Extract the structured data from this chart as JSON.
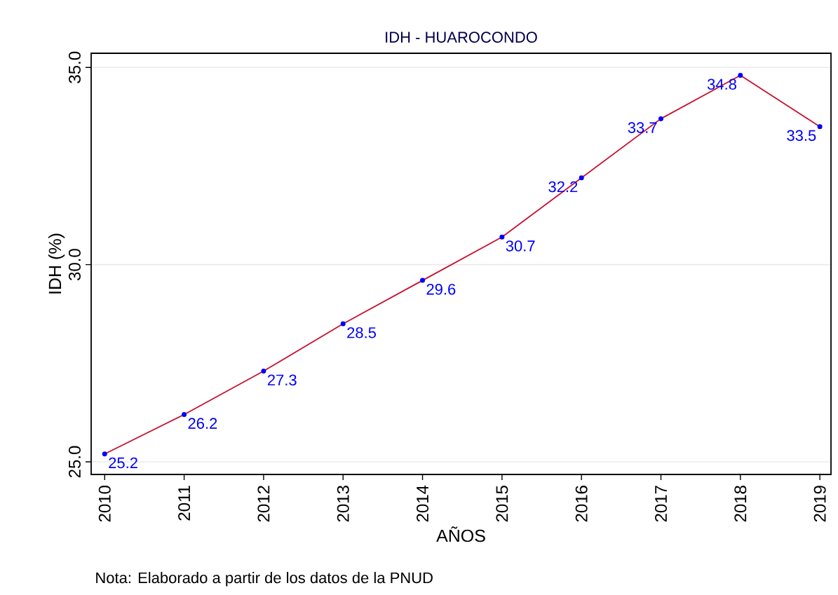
{
  "chart_data": {
    "type": "line",
    "title": "IDH - HUAROCONDO",
    "xlabel": "AÑOS",
    "ylabel": "IDH (%)",
    "x": [
      2010,
      2011,
      2012,
      2013,
      2014,
      2015,
      2016,
      2017,
      2018,
      2019
    ],
    "values": [
      25.2,
      26.2,
      27.3,
      28.5,
      29.6,
      30.7,
      32.2,
      33.7,
      34.8,
      33.5
    ],
    "color": "#c8102e",
    "marker": "circle",
    "data_labels": true,
    "grid": "y",
    "xlim": [
      2009.83,
      2019.14
    ],
    "xticks": [
      2010,
      2011,
      2012,
      2013,
      2014,
      2015,
      2016,
      2017,
      2018,
      2019
    ],
    "ylim": [
      24.68,
      35.36
    ],
    "yticks": [
      {
        "value": 25,
        "label": "25.0"
      },
      {
        "value": 30,
        "label": "30.0"
      },
      {
        "value": 35,
        "label": "35.0"
      }
    ],
    "annotations": [
      "Nota: Elaborado a partir de los datos de la PNUD"
    ]
  }
}
